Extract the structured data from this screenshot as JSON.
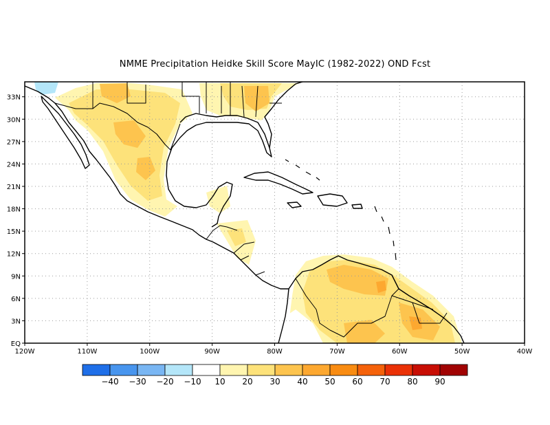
{
  "title": "NMME  Precipitation Heidke Skill Score MayIC (1982-2022) OND Fcst",
  "map": {
    "lon_range": [
      -120,
      -40
    ],
    "lat_range": [
      0,
      35
    ],
    "lon_ticks": [
      {
        "value": -120,
        "label": "120W"
      },
      {
        "value": -110,
        "label": "110W"
      },
      {
        "value": -100,
        "label": "100W"
      },
      {
        "value": -90,
        "label": "90W"
      },
      {
        "value": -80,
        "label": "80W"
      },
      {
        "value": -70,
        "label": "70W"
      },
      {
        "value": -60,
        "label": "60W"
      },
      {
        "value": -50,
        "label": "50W"
      },
      {
        "value": -40,
        "label": "40W"
      }
    ],
    "lat_ticks": [
      {
        "value": 0,
        "label": "EQ"
      },
      {
        "value": 3,
        "label": "3N"
      },
      {
        "value": 6,
        "label": "6N"
      },
      {
        "value": 9,
        "label": "9N"
      },
      {
        "value": 12,
        "label": "12N"
      },
      {
        "value": 15,
        "label": "15N"
      },
      {
        "value": 18,
        "label": "18N"
      },
      {
        "value": 21,
        "label": "21N"
      },
      {
        "value": 24,
        "label": "24N"
      },
      {
        "value": 27,
        "label": "27N"
      },
      {
        "value": 30,
        "label": "30N"
      },
      {
        "value": 33,
        "label": "33N"
      }
    ],
    "grid": "dotted",
    "coastline_color": "#000000"
  },
  "colorbar": {
    "colors": [
      "#1f6fe8",
      "#4895ee",
      "#79b6f3",
      "#b4e6f9",
      "#ffffff",
      "#fff5b0",
      "#fde27a",
      "#fdc44e",
      "#fda830",
      "#f98c12",
      "#f5620a",
      "#ea3106",
      "#c80e04",
      "#a10303"
    ],
    "labels": [
      "-40",
      "-30",
      "-20",
      "-10",
      "10",
      "20",
      "30",
      "40",
      "50",
      "60",
      "70",
      "80",
      "90"
    ]
  },
  "color_legend": {
    "light_blue": "#b4e6f9",
    "pale_yellow": "#fff5b0",
    "yellow": "#fde27a",
    "light_orange": "#fdc44e",
    "orange": "#fda830"
  }
}
